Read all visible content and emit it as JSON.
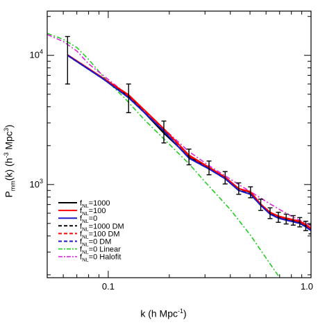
{
  "chart_data": {
    "type": "line",
    "x_scale": "log",
    "y_scale": "log",
    "xlim": [
      0.05,
      1.0
    ],
    "ylim": [
      190,
      22000
    ],
    "xlabel": {
      "main": "k (h Mpc",
      "sup": "-1",
      "end": ")"
    },
    "ylabel": {
      "p": "P",
      "sub": "mm",
      "mid": "(k) (h",
      "sup1": "-3",
      "mid2": " Mpc",
      "sup2": "3",
      "end": ")"
    },
    "x_ticks": [
      {
        "value": 0.1,
        "label": "0.1"
      },
      {
        "value": 1.0,
        "label": "1.0"
      }
    ],
    "y_ticks": [
      {
        "value": 1000,
        "base": "10",
        "exp": "3"
      },
      {
        "value": 10000,
        "base": "10",
        "exp": "4"
      }
    ],
    "legend_position": "bottom-left",
    "series": [
      {
        "name": "fNL=1000",
        "legend": {
          "f": "f",
          "sub": "NL",
          "rest": "=1000"
        },
        "color": "#000000",
        "dash": "solid",
        "width": 2,
        "x": [
          0.063,
          0.094,
          0.126,
          0.188,
          0.25,
          0.314,
          0.377,
          0.44,
          0.503,
          0.565,
          0.628,
          0.69,
          0.754,
          0.817,
          0.88,
          0.942,
          1.0
        ],
        "y": [
          10000,
          6600,
          4850,
          2500,
          1640,
          1340,
          1130,
          930,
          870,
          700,
          600,
          560,
          540,
          525,
          510,
          480,
          450
        ]
      },
      {
        "name": "fNL=100",
        "legend": {
          "f": "f",
          "sub": "NL",
          "rest": "=100"
        },
        "color": "#ff0000",
        "dash": "solid",
        "width": 2,
        "x": [
          0.063,
          0.094,
          0.126,
          0.188,
          0.25,
          0.314,
          0.377,
          0.44,
          0.503,
          0.565,
          0.628,
          0.69,
          0.754,
          0.817,
          0.88,
          0.942,
          1.0
        ],
        "y": [
          10100,
          6700,
          4950,
          2700,
          1690,
          1360,
          1140,
          930,
          880,
          705,
          610,
          570,
          550,
          535,
          520,
          490,
          460
        ]
      },
      {
        "name": "fNL=0",
        "legend": {
          "f": "f",
          "sub": "NL",
          "rest": "=0"
        },
        "color": "#1a1acc",
        "dash": "solid",
        "width": 2,
        "x": [
          0.063,
          0.094,
          0.126,
          0.188,
          0.25,
          0.314,
          0.377,
          0.44,
          0.503,
          0.565,
          0.628,
          0.69,
          0.754,
          0.817,
          0.88,
          0.942,
          1.0
        ],
        "y": [
          10000,
          6600,
          4700,
          2600,
          1600,
          1320,
          1110,
          900,
          840,
          690,
          590,
          550,
          530,
          515,
          500,
          470,
          440
        ]
      },
      {
        "name": "fNL=1000 DM",
        "legend": {
          "f": "f",
          "sub": "NL",
          "rest": "=1000 DM"
        },
        "color": "#000000",
        "dash": "dashed",
        "width": 2,
        "x": [
          0.063,
          0.094,
          0.126,
          0.188,
          0.25,
          0.314,
          0.377,
          0.44,
          0.503,
          0.565,
          0.628,
          0.69,
          0.754,
          0.817,
          0.88,
          0.942,
          1.0
        ],
        "y": [
          10000,
          6600,
          4800,
          2550,
          1630,
          1330,
          1120,
          920,
          860,
          695,
          595,
          555,
          535,
          520,
          505,
          475,
          445
        ]
      },
      {
        "name": "fNL=100 DM",
        "legend": {
          "f": "f",
          "sub": "NL",
          "rest": "=100 DM"
        },
        "color": "#ff0000",
        "dash": "dashed",
        "width": 2,
        "x": [
          0.063,
          0.094,
          0.126,
          0.188,
          0.25,
          0.314,
          0.377,
          0.44,
          0.503,
          0.565,
          0.628,
          0.69,
          0.754,
          0.817,
          0.88,
          0.942,
          1.0
        ],
        "y": [
          10000,
          6650,
          4850,
          2650,
          1660,
          1350,
          1130,
          925,
          870,
          700,
          605,
          565,
          545,
          530,
          515,
          485,
          455
        ]
      },
      {
        "name": "fNL=0 DM",
        "legend": {
          "f": "f",
          "sub": "NL",
          "rest": "=0 DM"
        },
        "color": "#1a1acc",
        "dash": "dashed",
        "width": 2,
        "x": [
          0.063,
          0.094,
          0.126,
          0.188,
          0.25,
          0.314,
          0.377,
          0.44,
          0.503,
          0.565,
          0.628,
          0.69,
          0.754,
          0.817,
          0.88,
          0.942,
          1.0
        ],
        "y": [
          10000,
          6600,
          4700,
          2600,
          1600,
          1320,
          1110,
          900,
          840,
          690,
          590,
          550,
          530,
          515,
          500,
          470,
          440
        ]
      },
      {
        "name": "fNL=0 Linear",
        "legend": {
          "f": "f",
          "sub": "NL",
          "rest": "=0 Linear"
        },
        "color": "#22cc22",
        "dash": "dashdot",
        "width": 1.6,
        "x": [
          0.05,
          0.06,
          0.07,
          0.08,
          0.09,
          0.1,
          0.12,
          0.15,
          0.2,
          0.25,
          0.3,
          0.4,
          0.5,
          0.6,
          0.7
        ],
        "y": [
          14800,
          13300,
          11500,
          9300,
          7500,
          6200,
          4700,
          3200,
          2050,
          1450,
          1050,
          640,
          410,
          270,
          190
        ]
      },
      {
        "name": "fNL=0 Halofit",
        "legend": {
          "f": "f",
          "sub": "NL",
          "rest": "=0 Halofit"
        },
        "color": "#dd22dd",
        "dash": "dashdot",
        "width": 1.6,
        "x": [
          0.05,
          0.06,
          0.07,
          0.08,
          0.1,
          0.126,
          0.15,
          0.188,
          0.25,
          0.314,
          0.377,
          0.44,
          0.503,
          0.6,
          0.7,
          0.8,
          0.9,
          1.0
        ],
        "y": [
          14500,
          12800,
          10800,
          8600,
          6500,
          4900,
          3700,
          2700,
          1800,
          1400,
          1170,
          1000,
          880,
          740,
          640,
          570,
          520,
          480
        ]
      }
    ],
    "error_bars": {
      "series": "fNL=1000",
      "x": [
        0.063,
        0.126,
        0.188,
        0.25,
        0.314,
        0.377,
        0.44,
        0.503,
        0.565,
        0.628,
        0.69,
        0.754,
        0.817,
        0.88,
        0.942,
        1.0
      ],
      "lo": [
        6000,
        3600,
        2100,
        1420,
        1190,
        1010,
        840,
        790,
        630,
        545,
        510,
        495,
        485,
        470,
        440,
        415
      ],
      "hi": [
        14000,
        6000,
        3100,
        1880,
        1520,
        1260,
        1030,
        960,
        770,
        660,
        610,
        590,
        575,
        555,
        520,
        490
      ]
    }
  }
}
